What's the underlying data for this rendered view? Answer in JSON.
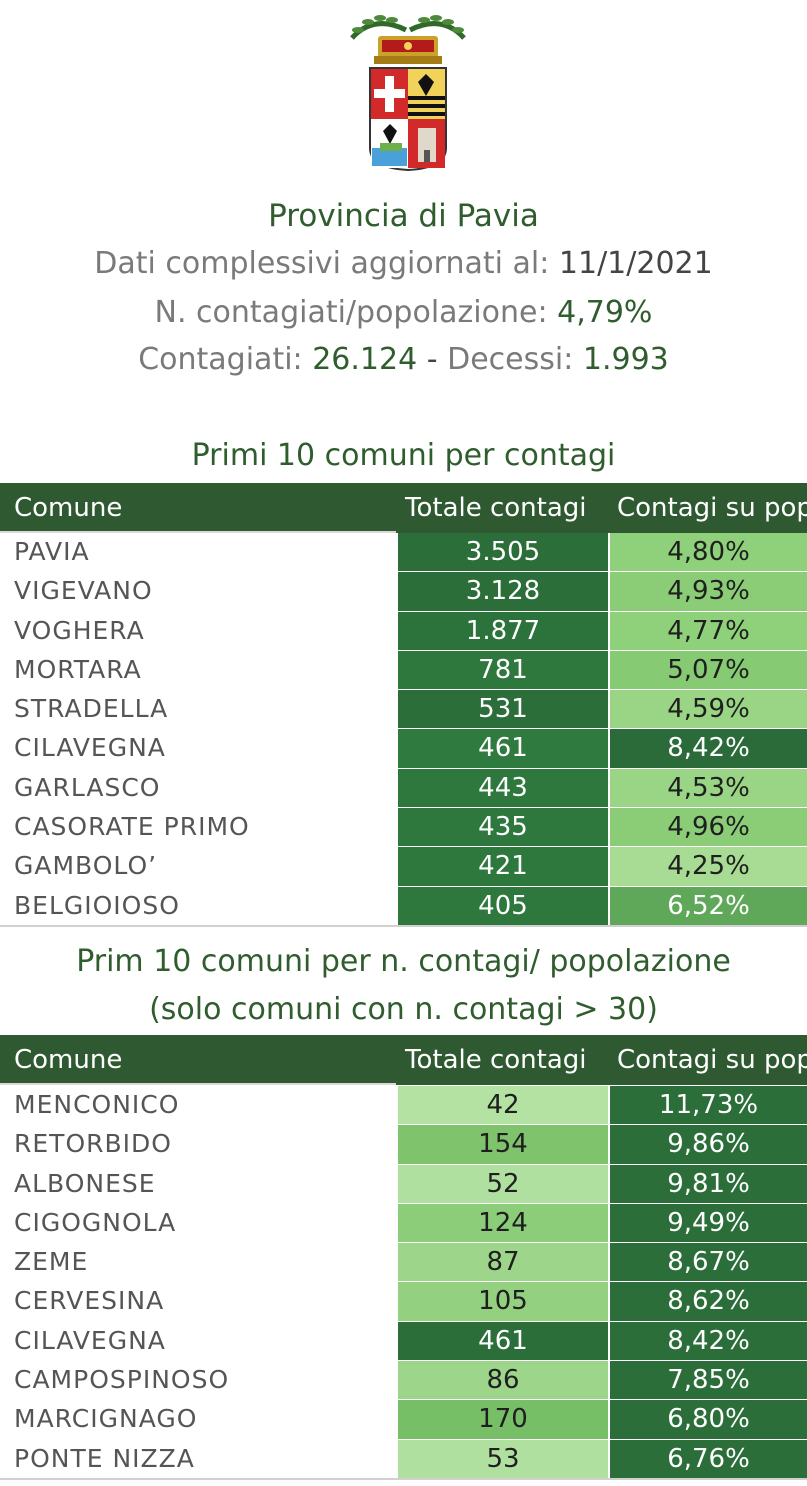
{
  "header": {
    "title": "Provincia di Pavia",
    "updated_label": "Dati complessivi aggiornati al:",
    "updated_value": "11/1/2021",
    "ratio_label": "N. contagiati/popolazione:",
    "ratio_value": "4,79%",
    "infected_label": "Contagiati:",
    "infected_value": "26.124",
    "separator": "-",
    "deaths_label": "Decessi:",
    "deaths_value": "1.993"
  },
  "table1": {
    "title": "Primi 10 comuni per contagi",
    "columns": [
      "Comune",
      "Totale contagi",
      "Contagi su pop"
    ],
    "rows": [
      {
        "name": "PAVIA",
        "total": "3.505",
        "pct": "4,80%",
        "total_bg": "#2b6e3a",
        "pct_bg": "#8fd07a"
      },
      {
        "name": "VIGEVANO",
        "total": "3.128",
        "pct": "4,93%",
        "total_bg": "#2b6e3a",
        "pct_bg": "#8bcd77"
      },
      {
        "name": "VOGHERA",
        "total": "1.877",
        "pct": "4,77%",
        "total_bg": "#2c723b",
        "pct_bg": "#8fd07a"
      },
      {
        "name": "MORTARA",
        "total": "781",
        "pct": "5,07%",
        "total_bg": "#2e773d",
        "pct_bg": "#86ca73"
      },
      {
        "name": "STRADELLA",
        "total": "531",
        "pct": "4,59%",
        "total_bg": "#2b6e3a",
        "pct_bg": "#9ad585"
      },
      {
        "name": "CILAVEGNA",
        "total": "461",
        "pct": "8,42%",
        "total_bg": "#2f7a3e",
        "pct_bg": "#2a6b39"
      },
      {
        "name": "GARLASCO",
        "total": "443",
        "pct": "4,53%",
        "total_bg": "#2e783e",
        "pct_bg": "#9ad585"
      },
      {
        "name": "CASORATE PRIMO",
        "total": "435",
        "pct": "4,96%",
        "total_bg": "#2e783e",
        "pct_bg": "#8bcd77"
      },
      {
        "name": "GAMBOLO’",
        "total": "421",
        "pct": "4,25%",
        "total_bg": "#2e783e",
        "pct_bg": "#a8dc95"
      },
      {
        "name": "BELGIOIOSO",
        "total": "405",
        "pct": "6,52%",
        "total_bg": "#2e783e",
        "pct_bg": "#5fa85a"
      }
    ]
  },
  "table2": {
    "title_line1": "Prim 10 comuni per n. contagi/ popolazione",
    "title_line2": "(solo comuni con n. contagi > 30)",
    "columns": [
      "Comune",
      "Totale contagi",
      "Contagi su pop"
    ],
    "rows": [
      {
        "name": "MENCONICO",
        "total": "42",
        "pct": "11,73%",
        "total_bg": "#b3e2a3",
        "pct_bg": "#2b6e3a"
      },
      {
        "name": "RETORBIDO",
        "total": "154",
        "pct": "9,86%",
        "total_bg": "#7fc46d",
        "pct_bg": "#2b6e3a"
      },
      {
        "name": "ALBONESE",
        "total": "52",
        "pct": "9,81%",
        "total_bg": "#b0e0a0",
        "pct_bg": "#2b6e3a"
      },
      {
        "name": "CIGOGNOLA",
        "total": "124",
        "pct": "9,49%",
        "total_bg": "#8bcd78",
        "pct_bg": "#2b6e3a"
      },
      {
        "name": "ZEME",
        "total": "87",
        "pct": "8,67%",
        "total_bg": "#9dd68a",
        "pct_bg": "#2b6e3a"
      },
      {
        "name": "CERVESINA",
        "total": "105",
        "pct": "8,62%",
        "total_bg": "#93d180",
        "pct_bg": "#2b6e3a"
      },
      {
        "name": "CILAVEGNA",
        "total": "461",
        "pct": "8,42%",
        "total_bg": "#2b6e3a",
        "pct_bg": "#2b6e3a"
      },
      {
        "name": "CAMPOSPINOSO",
        "total": "86",
        "pct": "7,85%",
        "total_bg": "#9dd68a",
        "pct_bg": "#2b6e3a"
      },
      {
        "name": "MARCIGNAGO",
        "total": "170",
        "pct": "6,80%",
        "total_bg": "#77bf66",
        "pct_bg": "#2b6e3a"
      },
      {
        "name": "PONTE NIZZA",
        "total": "53",
        "pct": "6,76%",
        "total_bg": "#b0e0a0",
        "pct_bg": "#2b6e3a"
      }
    ]
  }
}
